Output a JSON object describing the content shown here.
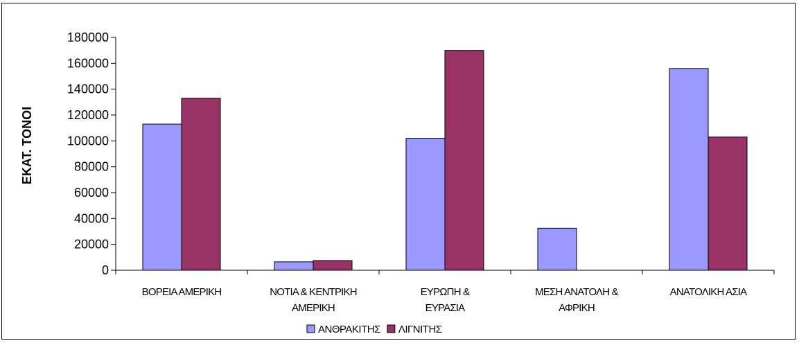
{
  "chart_data": {
    "type": "bar",
    "title": "",
    "xlabel": "",
    "ylabel": "ΕΚΑΤ. ΤΟΝΟΙ",
    "ylim": [
      0,
      180000
    ],
    "yticks": [
      "0",
      "20000",
      "40000",
      "60000",
      "80000",
      "100000",
      "120000",
      "140000",
      "160000",
      "180000"
    ],
    "categories": [
      [
        "ΒΟΡΕΙΑ ΑΜΕΡΙΚΗ"
      ],
      [
        "ΝΟΤΙΑ & ΚΕΝΤΡΙΚΗ",
        "ΑΜΕΡΙΚΗ"
      ],
      [
        "ΕΥΡΩΠΗ &",
        "ΕΥΡΑΣΙΑ"
      ],
      [
        "ΜΕΣΗ ΑΝΑΤΟΛΗ &",
        "ΑΦΡΙΚΗ"
      ],
      [
        "ΑΝΑΤΟΛΙΚΗ ΑΣΙΑ"
      ]
    ],
    "series": [
      {
        "name": "ΑΝΘΡΑΚΙΤΗΣ",
        "color": "#9999ff",
        "values": [
          113000,
          6500,
          102000,
          32500,
          156000
        ]
      },
      {
        "name": "ΛΙΓΝΙΤΗΣ",
        "color": "#993366",
        "values": [
          133000,
          7500,
          170000,
          0,
          103000
        ]
      }
    ],
    "grid": false,
    "legend_position": "bottom"
  }
}
